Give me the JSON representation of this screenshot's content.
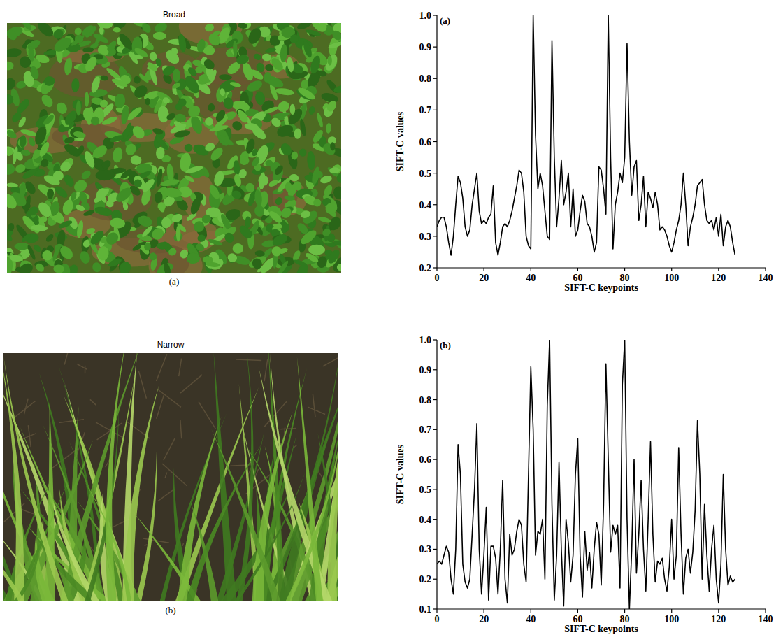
{
  "photos": [
    {
      "title": "Broad",
      "caption": "(a)"
    },
    {
      "title": "Narrow",
      "caption": "(b)"
    }
  ],
  "chart_data": [
    {
      "type": "line",
      "title": "(a)",
      "x_label": "SIFT-C keypoints",
      "y_label": "SIFT-C values",
      "color": "#000000",
      "xlim": [
        0,
        140
      ],
      "xticks": [
        0,
        20,
        40,
        60,
        80,
        100,
        120,
        140
      ],
      "ylim": [
        0.2,
        1.0
      ],
      "yticks": [
        0.2,
        0.3,
        0.4,
        0.5,
        0.6,
        0.7,
        0.8,
        0.9,
        {
          "value": 1,
          "label": "1.0"
        }
      ],
      "x": [
        0,
        1,
        2,
        3,
        4,
        5,
        6,
        7,
        8,
        9,
        10,
        11,
        12,
        13,
        14,
        15,
        16,
        17,
        18,
        19,
        20,
        21,
        22,
        23,
        24,
        25,
        26,
        27,
        28,
        29,
        30,
        31,
        32,
        33,
        34,
        35,
        36,
        37,
        38,
        39,
        40,
        41,
        42,
        43,
        44,
        45,
        46,
        47,
        48,
        49,
        50,
        51,
        52,
        53,
        54,
        55,
        56,
        57,
        58,
        59,
        60,
        61,
        62,
        63,
        64,
        65,
        66,
        67,
        68,
        69,
        70,
        71,
        72,
        73,
        74,
        75,
        76,
        77,
        78,
        79,
        80,
        81,
        82,
        83,
        84,
        85,
        86,
        87,
        88,
        89,
        90,
        91,
        92,
        93,
        94,
        95,
        96,
        97,
        98,
        99,
        100,
        101,
        102,
        103,
        104,
        105,
        106,
        107,
        108,
        109,
        110,
        111,
        112,
        113,
        114,
        115,
        116,
        117,
        118,
        119,
        120,
        121,
        122,
        123,
        124,
        125,
        126,
        127
      ],
      "values": [
        0.33,
        0.35,
        0.36,
        0.36,
        0.33,
        0.28,
        0.24,
        0.3,
        0.4,
        0.49,
        0.47,
        0.42,
        0.33,
        0.3,
        0.32,
        0.4,
        0.45,
        0.5,
        0.38,
        0.34,
        0.35,
        0.34,
        0.36,
        0.37,
        0.46,
        0.28,
        0.24,
        0.28,
        0.33,
        0.34,
        0.33,
        0.35,
        0.38,
        0.42,
        0.46,
        0.51,
        0.5,
        0.44,
        0.3,
        0.27,
        0.26,
        1.0,
        0.62,
        0.45,
        0.5,
        0.46,
        0.38,
        0.3,
        0.29,
        0.92,
        0.55,
        0.33,
        0.42,
        0.54,
        0.4,
        0.44,
        0.5,
        0.33,
        0.45,
        0.3,
        0.32,
        0.38,
        0.43,
        0.41,
        0.34,
        0.33,
        0.3,
        0.25,
        0.28,
        0.52,
        0.51,
        0.45,
        0.37,
        1.0,
        0.55,
        0.26,
        0.4,
        0.44,
        0.5,
        0.47,
        0.55,
        0.91,
        0.6,
        0.43,
        0.52,
        0.54,
        0.35,
        0.4,
        0.49,
        0.33,
        0.44,
        0.42,
        0.39,
        0.44,
        0.4,
        0.32,
        0.33,
        0.32,
        0.3,
        0.27,
        0.25,
        0.28,
        0.32,
        0.35,
        0.4,
        0.5,
        0.4,
        0.27,
        0.33,
        0.36,
        0.4,
        0.46,
        0.47,
        0.48,
        0.4,
        0.35,
        0.34,
        0.35,
        0.32,
        0.36,
        0.3,
        0.37,
        0.27,
        0.33,
        0.35,
        0.33,
        0.28,
        0.24
      ]
    },
    {
      "type": "line",
      "title": "(b)",
      "x_label": "SIFT-C keypoints",
      "y_label": "SIFT-C values",
      "color": "#000000",
      "xlim": [
        0,
        140
      ],
      "xticks": [
        0,
        20,
        40,
        60,
        80,
        100,
        120,
        140
      ],
      "ylim": [
        0.1,
        1.0
      ],
      "yticks": [
        0.1,
        0.2,
        0.3,
        0.4,
        0.5,
        0.6,
        0.7,
        0.8,
        0.9,
        {
          "value": 1,
          "label": "1.0"
        }
      ],
      "x": [
        0,
        1,
        2,
        3,
        4,
        5,
        6,
        7,
        8,
        9,
        10,
        11,
        12,
        13,
        14,
        15,
        16,
        17,
        18,
        19,
        20,
        21,
        22,
        23,
        24,
        25,
        26,
        27,
        28,
        29,
        30,
        31,
        32,
        33,
        34,
        35,
        36,
        37,
        38,
        39,
        40,
        41,
        42,
        43,
        44,
        45,
        46,
        47,
        48,
        49,
        50,
        51,
        52,
        53,
        54,
        55,
        56,
        57,
        58,
        59,
        60,
        61,
        62,
        63,
        64,
        65,
        66,
        67,
        68,
        69,
        70,
        71,
        72,
        73,
        74,
        75,
        76,
        77,
        78,
        79,
        80,
        81,
        82,
        83,
        84,
        85,
        86,
        87,
        88,
        89,
        90,
        91,
        92,
        93,
        94,
        95,
        96,
        97,
        98,
        99,
        100,
        101,
        102,
        103,
        104,
        105,
        106,
        107,
        108,
        109,
        110,
        111,
        112,
        113,
        114,
        115,
        116,
        117,
        118,
        119,
        120,
        121,
        122,
        123,
        124,
        125,
        126,
        127
      ],
      "values": [
        0.25,
        0.26,
        0.25,
        0.28,
        0.31,
        0.29,
        0.2,
        0.15,
        0.3,
        0.65,
        0.55,
        0.25,
        0.19,
        0.17,
        0.2,
        0.35,
        0.5,
        0.72,
        0.3,
        0.15,
        0.28,
        0.44,
        0.13,
        0.31,
        0.31,
        0.27,
        0.15,
        0.3,
        0.53,
        0.2,
        0.12,
        0.35,
        0.28,
        0.3,
        0.36,
        0.4,
        0.38,
        0.25,
        0.19,
        0.55,
        0.91,
        0.7,
        0.28,
        0.36,
        0.35,
        0.4,
        0.2,
        0.78,
        1.0,
        0.45,
        0.13,
        0.28,
        0.59,
        0.3,
        0.11,
        0.4,
        0.32,
        0.19,
        0.28,
        0.55,
        0.67,
        0.28,
        0.14,
        0.36,
        0.23,
        0.29,
        0.17,
        0.3,
        0.39,
        0.35,
        0.18,
        0.45,
        0.92,
        0.6,
        0.29,
        0.38,
        0.35,
        0.38,
        0.17,
        0.85,
        1.0,
        0.4,
        0.1,
        0.3,
        0.6,
        0.22,
        0.35,
        0.53,
        0.3,
        0.16,
        0.4,
        0.66,
        0.35,
        0.19,
        0.26,
        0.25,
        0.27,
        0.2,
        0.16,
        0.24,
        0.4,
        0.2,
        0.28,
        0.64,
        0.35,
        0.15,
        0.27,
        0.3,
        0.22,
        0.29,
        0.43,
        0.73,
        0.55,
        0.2,
        0.45,
        0.28,
        0.16,
        0.3,
        0.38,
        0.2,
        0.12,
        0.25,
        0.55,
        0.3,
        0.18,
        0.21,
        0.19,
        0.2
      ]
    }
  ]
}
